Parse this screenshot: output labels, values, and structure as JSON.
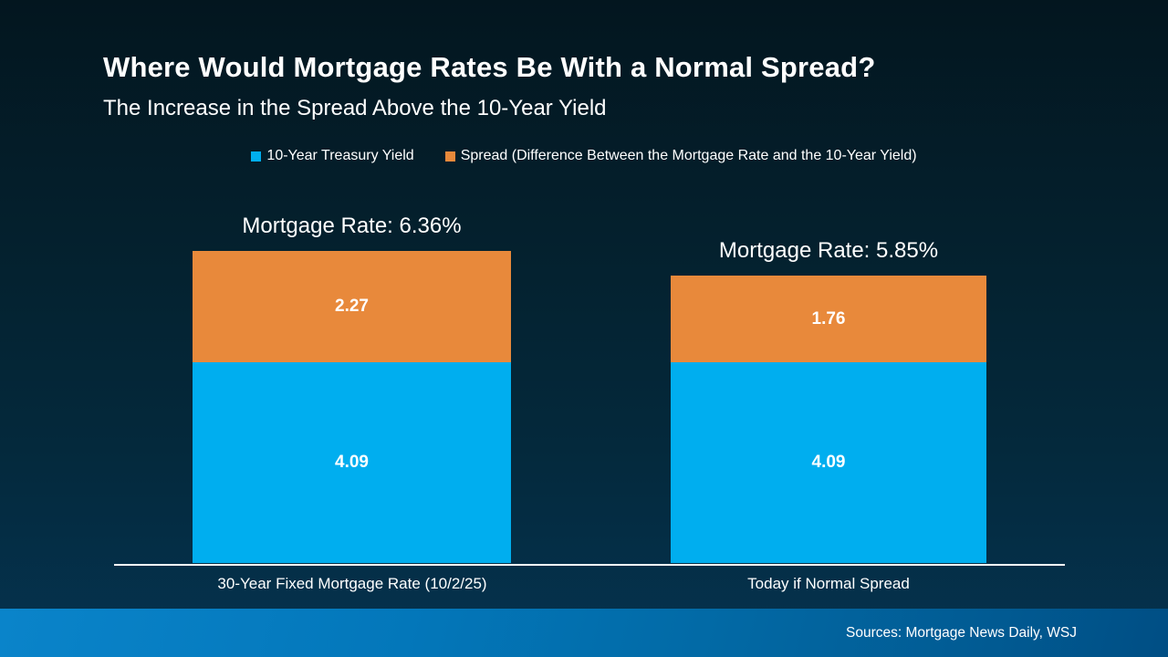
{
  "slide": {
    "title": "Where Would Mortgage Rates Be With a Normal Spread?",
    "subtitle": "The Increase in the Spread Above the 10-Year Yield",
    "source": "Sources: Mortgage News Daily, WSJ"
  },
  "colors": {
    "treasury_blue": "#00AEEF",
    "spread_orange": "#E8893B",
    "background_top": "#03161F",
    "background_bottom": "#053350",
    "footer_left": "#0A84CA",
    "footer_right": "#004E84",
    "axis_line": "#FFFFFF",
    "text": "#FFFFFF"
  },
  "legend": {
    "items": [
      {
        "label": "10-Year Treasury Yield",
        "color": "#00AEEF"
      },
      {
        "label": "Spread (Difference Between the Mortgage Rate and the 10-Year Yield)",
        "color": "#E8893B"
      }
    ]
  },
  "chart_data": {
    "type": "bar",
    "stacked": true,
    "title": "Where Would Mortgage Rates Be With a Normal Spread?",
    "subtitle": "The Increase in the Spread Above the 10-Year Yield",
    "categories": [
      "30-Year Fixed Mortgage Rate (10/2/25)",
      "Today if Normal Spread"
    ],
    "series": [
      {
        "name": "10-Year Treasury Yield",
        "color": "#00AEEF",
        "values": [
          4.09,
          4.09
        ]
      },
      {
        "name": "Spread (Difference Between the Mortgage Rate and the 10-Year Yield)",
        "color": "#E8893B",
        "values": [
          2.27,
          1.76
        ]
      }
    ],
    "totals": [
      6.36,
      5.85
    ],
    "total_labels": [
      "Mortgage Rate: 6.36%",
      "Mortgage Rate: 5.85%"
    ],
    "xlabel": "",
    "ylabel": "",
    "ylim": [
      0,
      6.36
    ],
    "grid": false,
    "legend_position": "top",
    "value_labels": "inside-center"
  }
}
